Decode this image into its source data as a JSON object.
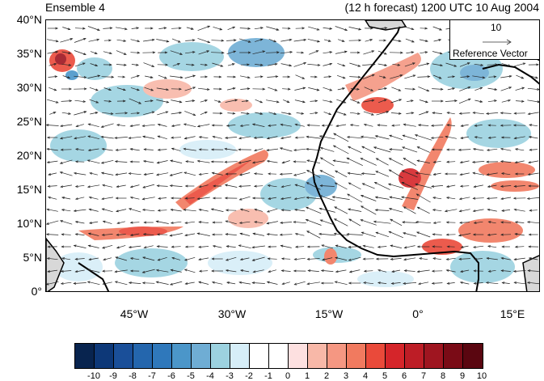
{
  "title_left": "Ensemble 4",
  "title_right": "(12 h forecast) 1200 UTC 10 Aug 2004",
  "y_axis_labels": [
    "40°N",
    "35°N",
    "30°N",
    "25°N",
    "20°N",
    "15°N",
    "10°N",
    "5°N",
    "0°"
  ],
  "x_axis_labels": [
    "45°W",
    "30°W",
    "15°W",
    "0°",
    "15°E"
  ],
  "reference_vector": {
    "magnitude": "10",
    "caption": "Reference Vector"
  },
  "colorbar": {
    "labels": [
      "-10",
      "-9",
      "-8",
      "-7",
      "-6",
      "-5",
      "-4",
      "-3",
      "-2",
      "-1",
      "0",
      "1",
      "2",
      "3",
      "4",
      "5",
      "6",
      "7",
      "8",
      "9",
      "10"
    ],
    "colors": [
      "#08244f",
      "#0d3878",
      "#1a4f99",
      "#2466ad",
      "#2f78bb",
      "#4b96c9",
      "#6fadd4",
      "#9cd2e0",
      "#d6eef8",
      "#ffffff",
      "#ffffff",
      "#fde0e0",
      "#f8b8a8",
      "#f59782",
      "#f17a5f",
      "#ea4a3a",
      "#d5252a",
      "#bd1d26",
      "#9f1520",
      "#7a0b16",
      "#5a0610"
    ]
  }
}
